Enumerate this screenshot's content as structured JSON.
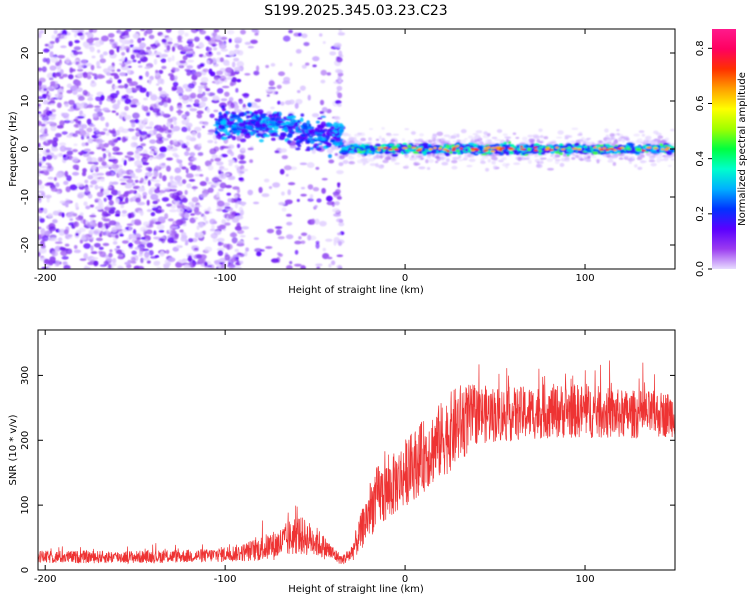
{
  "chart_data": [
    {
      "type": "heatmap",
      "title": "S199.2025.345.03.23.C23",
      "xlabel": "Height of straight line (km)",
      "ylabel": "Frequency (Hz)",
      "xlim": [
        -204,
        150
      ],
      "ylim": [
        -25,
        25
      ],
      "xticks": [
        -200,
        -100,
        0,
        100
      ],
      "yticks": [
        -20,
        -10,
        0,
        10,
        20
      ],
      "colorbar": {
        "label": "Normalized spectral amplitude",
        "range": [
          0,
          0.87
        ],
        "ticks": [
          0.0,
          0.2,
          0.4,
          0.6,
          0.8
        ],
        "colors": [
          "#e8dcff",
          "#9b3cf0",
          "#5a00ff",
          "#0033ff",
          "#00b0ff",
          "#00ffcc",
          "#00ff40",
          "#a0ff00",
          "#ffff00",
          "#ffa000",
          "#ff3000",
          "#ff0060",
          "#ff1a8c"
        ]
      },
      "description_points": {
        "noise_region_x": [
          -204,
          -35
        ],
        "signal_band_x": [
          -35,
          150
        ],
        "signal_band_freq_hz": [
          -1,
          1
        ]
      }
    },
    {
      "type": "line",
      "title": "",
      "xlabel": "Height of straight line (km)",
      "ylabel": "SNR (10 * v/v)",
      "xlim": [
        -204,
        150
      ],
      "ylim": [
        0,
        370
      ],
      "xticks": [
        -200,
        -100,
        0,
        100
      ],
      "yticks": [
        0,
        100,
        200,
        300
      ],
      "color": "#ee3333",
      "envelope": {
        "x": [
          -204,
          -150,
          -110,
          -90,
          -80,
          -70,
          -60,
          -50,
          -40,
          -35,
          -30,
          -25,
          -20,
          -15,
          -10,
          -5,
          0,
          10,
          20,
          30,
          40,
          60,
          80,
          100,
          120,
          150
        ],
        "mean": [
          20,
          20,
          22,
          27,
          33,
          40,
          55,
          45,
          25,
          15,
          25,
          55,
          90,
          115,
          120,
          135,
          150,
          175,
          200,
          225,
          240,
          240,
          245,
          245,
          240,
          240
        ],
        "spread": [
          14,
          14,
          15,
          20,
          28,
          35,
          45,
          35,
          18,
          10,
          20,
          40,
          60,
          70,
          70,
          70,
          75,
          80,
          85,
          90,
          65,
          60,
          60,
          60,
          55,
          50
        ]
      }
    }
  ]
}
